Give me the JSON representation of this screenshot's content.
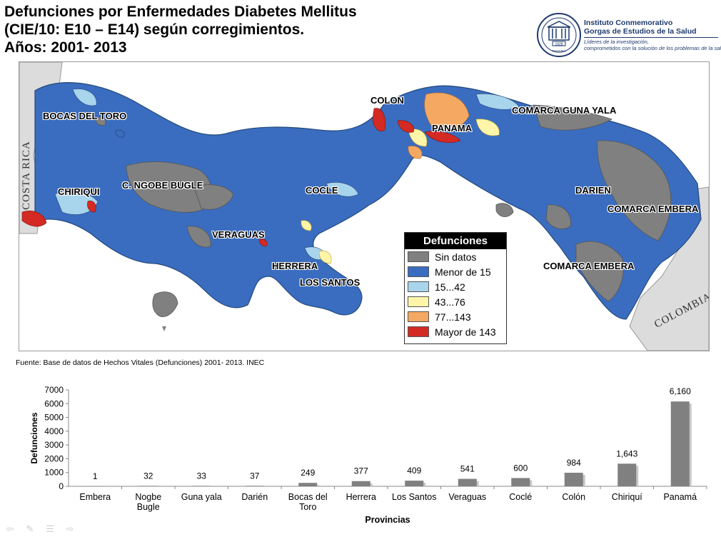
{
  "title": {
    "line1": "Defunciones por Enfermedades Diabetes Mellitus",
    "line2": "(CIE/10:  E10 – E14) según corregimientos.",
    "line3": "Años: 2001- 2013"
  },
  "logo": {
    "name_line1": "Instituto Conmemorativo",
    "name_line2": "Gorgas de Estudios de la Salud",
    "slogan_line1": "Líderes de la investigación,",
    "slogan_line2": "comprometidos con la solución de los problemas de la salud",
    "seal_year": "1928",
    "seal_text": "PANAMÁ"
  },
  "map": {
    "colors": {
      "sin_datos": "#808080",
      "menor_15": "#3a6dbf",
      "r15_42": "#a8d4ec",
      "r43_76": "#fff5a8",
      "r77_143": "#f5a862",
      "mayor_143": "#d42a24",
      "neighbor": "#dcdcdc",
      "sea": "#ffffff"
    },
    "regions": {
      "bocas": "BOCAS DEL TORO",
      "colon": "COLON",
      "panama": "PANAMA",
      "guna": "COMARCA GUNA YALA",
      "chiriqui": "CHIRIQUI",
      "ngobe": "C. NGOBE BUGLE",
      "cocle": "COCLE",
      "darien": "DARIEN",
      "embera1": "COMARCA EMBERA",
      "veraguas": "VERAGUAS",
      "herrera": "HERRERA",
      "lossantos": "LOS SANTOS",
      "embera2": "COMARCA EMBERA"
    },
    "countries": {
      "costa_rica": "COSTA RICA",
      "colombia": "COLOMBIA"
    },
    "legend": {
      "title": "Defunciones",
      "items": [
        {
          "label": "Sin datos",
          "color": "#808080"
        },
        {
          "label": "Menor de 15",
          "color": "#3a6dbf"
        },
        {
          "label": "15...42",
          "color": "#a8d4ec"
        },
        {
          "label": "43...76",
          "color": "#fff5a8"
        },
        {
          "label": "77...143",
          "color": "#f5a862"
        },
        {
          "label": "Mayor de 143",
          "color": "#d42a24"
        }
      ]
    }
  },
  "source": "Fuente: Base de datos de Hechos Vitales (Defunciones) 2001- 2013. INEC",
  "chart_data": {
    "type": "bar",
    "categories": [
      "Embera",
      "Nogbe Bugle",
      "Guna yala",
      "Darién",
      "Bocas del Toro",
      "Herrera",
      "Los Santos",
      "Veraguas",
      "Coclé",
      "Colón",
      "Chiriquí",
      "Panamá"
    ],
    "category_lines": [
      [
        "Embera"
      ],
      [
        "Nogbe",
        "Bugle"
      ],
      [
        "Guna yala"
      ],
      [
        "Darién"
      ],
      [
        "Bocas del",
        "Toro"
      ],
      [
        "Herrera"
      ],
      [
        "Los Santos"
      ],
      [
        "Veraguas"
      ],
      [
        "Coclé"
      ],
      [
        "Colón"
      ],
      [
        "Chiriquí"
      ],
      [
        "Panamá"
      ]
    ],
    "values": [
      1,
      32,
      33,
      37,
      249,
      377,
      409,
      541,
      600,
      984,
      1643,
      6160
    ],
    "data_labels": [
      "1",
      "32",
      "33",
      "37",
      "249",
      "377",
      "409",
      "541",
      "600",
      "984",
      "1,643",
      "6,160"
    ],
    "xlabel": "Provincias",
    "ylabel": "Defunciones",
    "ylim": [
      0,
      7000
    ],
    "yticks": [
      0,
      1000,
      2000,
      3000,
      4000,
      5000,
      6000,
      7000
    ],
    "bar_color": "#808080"
  }
}
